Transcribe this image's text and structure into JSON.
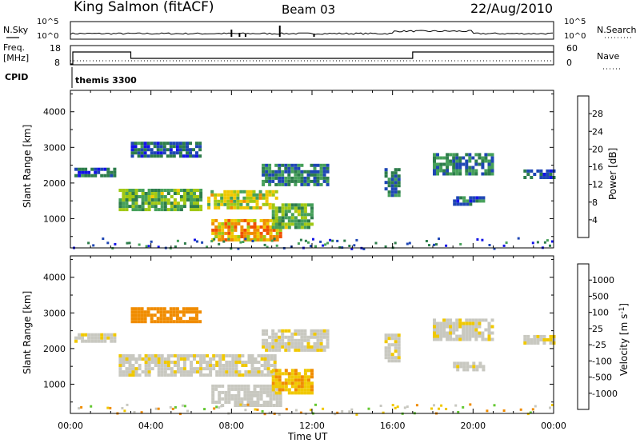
{
  "header": {
    "station": "King Salmon (fitACF)",
    "beam": "Beam 03",
    "date": "22/Aug/2010"
  },
  "top_panels": {
    "nsky_label": "N.Sky",
    "nsky_ticks": [
      "10^5",
      "10^0"
    ],
    "nsearch_label": "N.Search",
    "nsearch_ticks": [
      "10^5",
      "10^0"
    ],
    "freq_label_1": "Freq.",
    "freq_label_2": "[MHz]",
    "freq_ticks": [
      "18",
      "8"
    ],
    "nave_label": "Nave",
    "nave_ticks": [
      "60",
      "0"
    ],
    "cpid_label": "CPID",
    "cpid_value": "themis 3300"
  },
  "colors": {
    "power_scale": [
      "#1414e6",
      "#1e46b4",
      "#2d7d4b",
      "#46a05a",
      "#a0c814",
      "#f0c800",
      "#f08c00",
      "#f05000",
      "#e61414"
    ],
    "velocity_scale": [
      "#e61414",
      "#f05000",
      "#f08c00",
      "#f0c800",
      "#c8c8c0",
      "#c8c8c0",
      "#64c832",
      "#2d7d4b",
      "#3264a0",
      "#1414c8"
    ]
  },
  "chart_data": [
    {
      "type": "heatmap",
      "title": "Power",
      "ylabel": "Slant Range [km]",
      "xlabel": "",
      "ylim": [
        180,
        4600
      ],
      "xlim": [
        0,
        24
      ],
      "yticks": [
        "1000",
        "2000",
        "3000",
        "4000"
      ],
      "colorbar": {
        "label": "Power [dB]",
        "range": [
          0,
          32
        ],
        "ticks": [
          "4",
          "8",
          "12",
          "16",
          "20",
          "24",
          "28"
        ]
      },
      "regions": [
        {
          "t": [
            6.8,
            10.2
          ],
          "r": [
            1350,
            1850
          ],
          "v": 17
        },
        {
          "t": [
            2.4,
            6.5
          ],
          "r": [
            1300,
            1900
          ],
          "v": 13
        },
        {
          "t": [
            7.0,
            10.5
          ],
          "r": [
            450,
            1050
          ],
          "v": 22
        },
        {
          "t": [
            10.0,
            12.0
          ],
          "r": [
            800,
            1500
          ],
          "v": 13
        },
        {
          "t": [
            9.5,
            12.8
          ],
          "r": [
            2000,
            2600
          ],
          "v": 9
        },
        {
          "t": [
            3.0,
            6.5
          ],
          "r": [
            2800,
            3200
          ],
          "v": 6
        },
        {
          "t": [
            0.2,
            2.2
          ],
          "r": [
            2250,
            2450
          ],
          "v": 6
        },
        {
          "t": [
            15.6,
            16.4
          ],
          "r": [
            1700,
            2500
          ],
          "v": 8
        },
        {
          "t": [
            18.0,
            21.0
          ],
          "r": [
            2300,
            2900
          ],
          "v": 9
        },
        {
          "t": [
            19.0,
            20.6
          ],
          "r": [
            1450,
            1700
          ],
          "v": 7
        },
        {
          "t": [
            22.5,
            24.0
          ],
          "r": [
            2200,
            2400
          ],
          "v": 6
        }
      ]
    },
    {
      "type": "heatmap",
      "title": "Velocity",
      "ylabel": "Slant Range [km]",
      "xlabel": "Time UT",
      "ylim": [
        180,
        4600
      ],
      "xlim": [
        0,
        24
      ],
      "yticks": [
        "1000",
        "2000",
        "3000",
        "4000"
      ],
      "xticks": [
        "00:00",
        "04:00",
        "08:00",
        "12:00",
        "16:00",
        "20:00",
        "00:00"
      ],
      "colorbar": {
        "label": "Velocity [m s^-1]",
        "ticks": [
          "1000",
          "500",
          "100",
          "25",
          "-25",
          "-100",
          "-500",
          "-1000"
        ]
      },
      "regions": [
        {
          "t": [
            2.4,
            10.2
          ],
          "r": [
            1300,
            1900
          ],
          "v": 0
        },
        {
          "t": [
            7.0,
            10.5
          ],
          "r": [
            450,
            1050
          ],
          "v": 60
        },
        {
          "t": [
            10.0,
            12.0
          ],
          "r": [
            800,
            1500
          ],
          "v": -80
        },
        {
          "t": [
            9.5,
            12.8
          ],
          "r": [
            2000,
            2600
          ],
          "v": 0
        },
        {
          "t": [
            3.0,
            6.5
          ],
          "r": [
            2800,
            3200
          ],
          "v": -150
        },
        {
          "t": [
            0.2,
            2.2
          ],
          "r": [
            2250,
            2450
          ],
          "v": 0
        },
        {
          "t": [
            15.6,
            16.4
          ],
          "r": [
            1700,
            2500
          ],
          "v": 0
        },
        {
          "t": [
            18.0,
            21.0
          ],
          "r": [
            2300,
            2900
          ],
          "v": 0
        },
        {
          "t": [
            19.0,
            20.6
          ],
          "r": [
            1450,
            1700
          ],
          "v": 0
        },
        {
          "t": [
            22.5,
            24.0
          ],
          "r": [
            2200,
            2400
          ],
          "v": 0
        }
      ]
    }
  ]
}
